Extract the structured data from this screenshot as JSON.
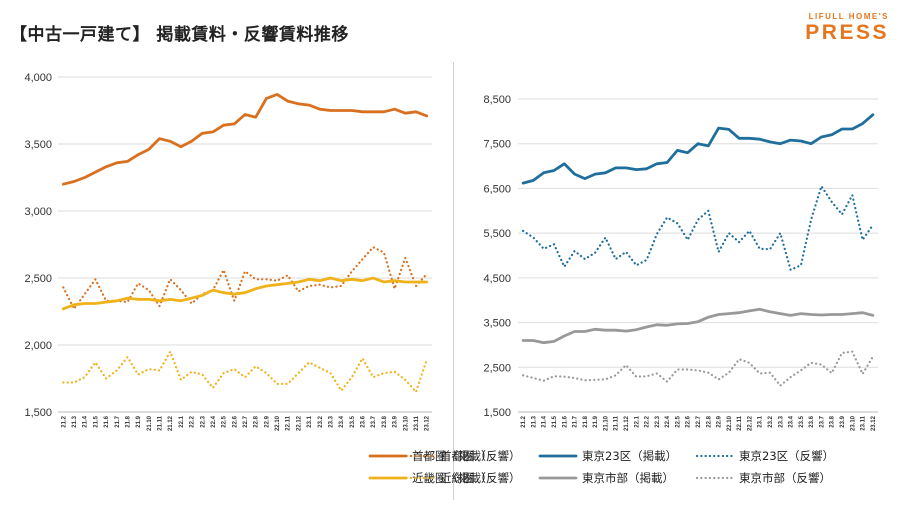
{
  "header": {
    "title": "【中古一戸建て】 掲載賃料・反響賃料推移",
    "brand_top": "LIFULL HOME'S",
    "brand_main": "PRESS"
  },
  "colors": {
    "brand": "#e6761e",
    "shuto": "#d8701f",
    "kinki": "#f0b21a",
    "tokyo23": "#1f6e9b",
    "tokyoshi": "#999999",
    "grid": "#dedede"
  },
  "chart_data": [
    {
      "type": "line",
      "ylim": [
        1500,
        4000
      ],
      "yticks": [
        "1,500",
        "2,000",
        "2,500",
        "3,000",
        "3,500",
        "4,000"
      ],
      "ytick_values": [
        1500,
        2000,
        2500,
        3000,
        3500,
        4000
      ],
      "categories": [
        "21.2",
        "21.3",
        "21.4",
        "21.5",
        "21.6",
        "21.7",
        "21.8",
        "21.9",
        "21.10",
        "21.11",
        "21.12",
        "22.1",
        "22.2",
        "22.3",
        "22.4",
        "22.5",
        "22.6",
        "22.7",
        "22.8",
        "22.9",
        "22.10",
        "22.11",
        "22.12",
        "23.1",
        "23.2",
        "23.3",
        "23.4",
        "23.5",
        "23.6",
        "23.7",
        "23.8",
        "23.9",
        "23.10",
        "23.11",
        "23.12"
      ],
      "series": [
        {
          "name": "首都圏（掲載）",
          "style": "solid",
          "color": "#d8701f",
          "values": [
            3200,
            3220,
            3250,
            3290,
            3330,
            3360,
            3370,
            3420,
            3460,
            3540,
            3520,
            3480,
            3520,
            3580,
            3590,
            3640,
            3650,
            3720,
            3700,
            3840,
            3870,
            3820,
            3800,
            3790,
            3760,
            3750,
            3750,
            3750,
            3740,
            3740,
            3740,
            3760,
            3730,
            3740,
            3710
          ]
        },
        {
          "name": "首都圏（反響）",
          "style": "dotted",
          "color": "#d8701f",
          "values": [
            2430,
            2270,
            2380,
            2490,
            2330,
            2330,
            2320,
            2460,
            2410,
            2290,
            2490,
            2410,
            2310,
            2380,
            2410,
            2560,
            2330,
            2550,
            2490,
            2490,
            2480,
            2520,
            2400,
            2440,
            2450,
            2430,
            2440,
            2550,
            2640,
            2730,
            2690,
            2420,
            2650,
            2440,
            2530
          ]
        },
        {
          "name": "近畿圏（掲載）",
          "style": "solid",
          "color": "#f0b21a",
          "values": [
            2270,
            2300,
            2310,
            2310,
            2320,
            2330,
            2350,
            2340,
            2340,
            2330,
            2340,
            2330,
            2350,
            2370,
            2410,
            2390,
            2380,
            2390,
            2420,
            2440,
            2450,
            2460,
            2470,
            2490,
            2480,
            2500,
            2480,
            2490,
            2480,
            2500,
            2470,
            2480,
            2470,
            2470,
            2470
          ]
        },
        {
          "name": "近総圏（反響）",
          "style": "dotted",
          "color": "#f0b21a",
          "values": [
            1720,
            1720,
            1760,
            1870,
            1750,
            1810,
            1910,
            1780,
            1820,
            1810,
            1950,
            1740,
            1800,
            1780,
            1680,
            1790,
            1820,
            1760,
            1840,
            1790,
            1710,
            1710,
            1790,
            1870,
            1830,
            1790,
            1660,
            1760,
            1900,
            1760,
            1790,
            1800,
            1740,
            1650,
            1890
          ]
        }
      ],
      "legend": [
        "首都圏（掲載）",
        "首都圏（反響）",
        "近畿圏（掲載）",
        "近総圏（反響）"
      ]
    },
    {
      "type": "line",
      "ylim": [
        1500,
        8500
      ],
      "yticks": [
        "1,500",
        "2,500",
        "3,500",
        "4,500",
        "5,500",
        "6,500",
        "7,500",
        "8,500"
      ],
      "ytick_values": [
        1500,
        2500,
        3500,
        4500,
        5500,
        6500,
        7500,
        8500
      ],
      "categories": [
        "21.2",
        "21.3",
        "21.4",
        "21.5",
        "21.6",
        "21.7",
        "21.8",
        "21.9",
        "21.10",
        "21.11",
        "21.12",
        "22.1",
        "22.2",
        "22.3",
        "22.4",
        "22.5",
        "22.6",
        "22.7",
        "22.8",
        "22.9",
        "22.10",
        "22.11",
        "22.12",
        "23.1",
        "23.2",
        "23.3",
        "23.4",
        "23.5",
        "23.6",
        "23.7",
        "23.8",
        "23.9",
        "23.10",
        "23.11",
        "23.12"
      ],
      "series": [
        {
          "name": "東京23区（掲載）",
          "style": "solid",
          "color": "#1f6e9b",
          "values": [
            6620,
            6680,
            6850,
            6900,
            7050,
            6820,
            6720,
            6820,
            6850,
            6960,
            6960,
            6920,
            6940,
            7050,
            7080,
            7350,
            7300,
            7500,
            7450,
            7850,
            7820,
            7620,
            7620,
            7600,
            7540,
            7500,
            7580,
            7560,
            7500,
            7650,
            7700,
            7830,
            7830,
            7950,
            8150
          ]
        },
        {
          "name": "東京23区（反響）",
          "style": "dotted",
          "color": "#1f6e9b",
          "values": [
            5550,
            5400,
            5150,
            5250,
            4750,
            5100,
            4920,
            5060,
            5400,
            4920,
            5080,
            4780,
            4900,
            5480,
            5850,
            5720,
            5350,
            5800,
            6000,
            5080,
            5500,
            5300,
            5550,
            5150,
            5140,
            5500,
            4680,
            4780,
            5800,
            6550,
            6200,
            5920,
            6350,
            5350,
            5680
          ]
        },
        {
          "name": "東京市部（掲載）",
          "style": "solid",
          "color": "#999999",
          "values": [
            3100,
            3100,
            3050,
            3080,
            3200,
            3300,
            3300,
            3350,
            3330,
            3330,
            3310,
            3340,
            3400,
            3450,
            3440,
            3470,
            3480,
            3520,
            3620,
            3680,
            3700,
            3720,
            3760,
            3800,
            3740,
            3700,
            3660,
            3700,
            3680,
            3670,
            3680,
            3680,
            3700,
            3720,
            3660
          ]
        },
        {
          "name": "東京市部（反響）",
          "style": "dotted",
          "color": "#999999",
          "values": [
            2320,
            2260,
            2200,
            2300,
            2290,
            2260,
            2210,
            2220,
            2230,
            2320,
            2550,
            2290,
            2300,
            2360,
            2180,
            2450,
            2450,
            2430,
            2380,
            2230,
            2380,
            2680,
            2600,
            2360,
            2380,
            2090,
            2280,
            2430,
            2600,
            2560,
            2370,
            2820,
            2850,
            2350,
            2740
          ]
        }
      ],
      "legend": [
        "東京23区（掲載）",
        "東京23区（反響）",
        "東京市部（掲載）",
        "東京市部（反響）"
      ]
    }
  ]
}
